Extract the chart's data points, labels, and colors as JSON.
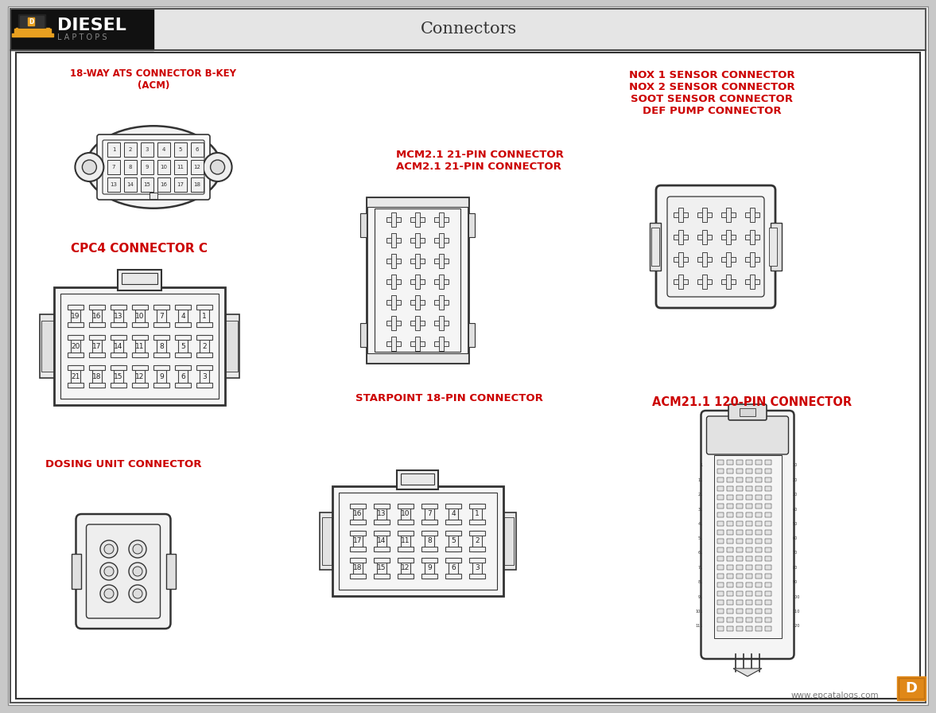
{
  "title": "Connectors",
  "bg_color": "#d8d8d8",
  "inner_bg": "#ffffff",
  "red_color": "#cc0000",
  "dark_color": "#333333",
  "watermark": "www.epcatalogs.com",
  "labels": {
    "ats": "18-WAY ATS CONNECTOR B-KEY\n(ACM)",
    "cpc4": "CPC4 CONNECTOR C",
    "mcm": "MCM2.1 21-PIN CONNECTOR\nACM2.1 21-PIN CONNECTOR",
    "nox": "NOX 1 SENSOR CONNECTOR\nNOX 2 SENSOR CONNECTOR\nSOOT SENSOR CONNECTOR\nDEF PUMP CONNECTOR",
    "acm21": "ACM21.1 120-PIN CONNECTOR",
    "starpoint": "STARPOINT 18-PIN CONNECTOR",
    "dosing": "DOSING UNIT CONNECTOR"
  }
}
